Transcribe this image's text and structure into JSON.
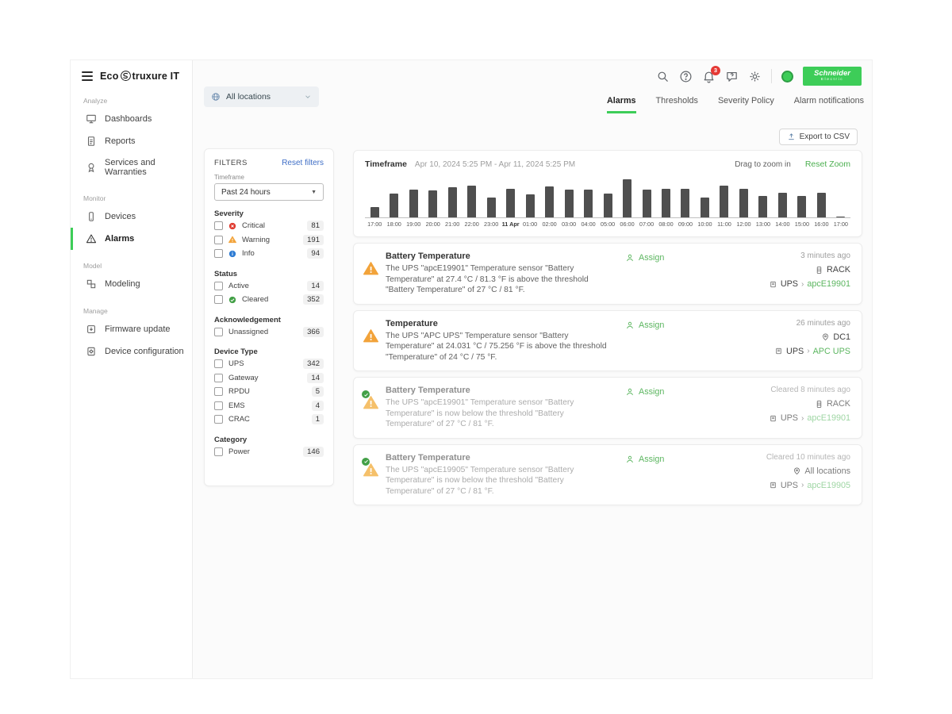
{
  "brand": {
    "eco": "Eco",
    "rest": "truxure IT"
  },
  "header": {
    "notifications_badge": "3",
    "se_line1": "Schneider",
    "se_line2": "Electric"
  },
  "sidebar": {
    "sections": [
      {
        "label": "Analyze",
        "items": [
          {
            "label": "Dashboards"
          },
          {
            "label": "Reports"
          },
          {
            "label": "Services and Warranties"
          }
        ]
      },
      {
        "label": "Monitor",
        "items": [
          {
            "label": "Devices"
          },
          {
            "label": "Alarms"
          }
        ]
      },
      {
        "label": "Model",
        "items": [
          {
            "label": "Modeling"
          }
        ]
      },
      {
        "label": "Manage",
        "items": [
          {
            "label": "Firmware update"
          },
          {
            "label": "Device configuration"
          }
        ]
      }
    ]
  },
  "toolbar": {
    "location_selector": "All locations",
    "export_label": "Export to CSV"
  },
  "tabs": [
    {
      "label": "Alarms"
    },
    {
      "label": "Thresholds"
    },
    {
      "label": "Severity Policy"
    },
    {
      "label": "Alarm notifications"
    }
  ],
  "filters": {
    "title": "FILTERS",
    "reset_label": "Reset filters",
    "timeframe_label": "Timeframe",
    "timeframe_value": "Past 24 hours",
    "severity_label": "Severity",
    "severity": [
      {
        "label": "Critical",
        "count": "81"
      },
      {
        "label": "Warning",
        "count": "191"
      },
      {
        "label": "Info",
        "count": "94"
      }
    ],
    "status_label": "Status",
    "status": [
      {
        "label": "Active",
        "count": "14"
      },
      {
        "label": "Cleared",
        "count": "352"
      }
    ],
    "ack_label": "Acknowledgement",
    "ack": [
      {
        "label": "Unassigned",
        "count": "366"
      }
    ],
    "device_type_label": "Device Type",
    "device_type": [
      {
        "label": "UPS",
        "count": "342"
      },
      {
        "label": "Gateway",
        "count": "14"
      },
      {
        "label": "RPDU",
        "count": "5"
      },
      {
        "label": "EMS",
        "count": "4"
      },
      {
        "label": "CRAC",
        "count": "1"
      }
    ],
    "category_label": "Category",
    "category": [
      {
        "label": "Power",
        "count": "146"
      }
    ]
  },
  "timeline": {
    "title": "Timeframe",
    "range": "Apr 10, 2024 5:25 PM  -  Apr 11, 2024 5:25 PM",
    "drag_hint": "Drag to zoom in",
    "reset_zoom": "Reset Zoom"
  },
  "chart_data": {
    "type": "bar",
    "categories": [
      "17:00",
      "18:00",
      "19:00",
      "20:00",
      "21:00",
      "22:00",
      "23:00",
      "11 Apr",
      "01:00",
      "02:00",
      "03:00",
      "04:00",
      "05:00",
      "06:00",
      "07:00",
      "08:00",
      "09:00",
      "10:00",
      "11:00",
      "12:00",
      "13:00",
      "14:00",
      "15:00",
      "16:00",
      "17:00"
    ],
    "values": [
      10,
      23,
      27,
      26,
      29,
      31,
      19,
      28,
      22,
      30,
      27,
      27,
      23,
      37,
      27,
      28,
      28,
      19,
      31,
      28,
      21,
      24,
      21,
      24,
      1
    ],
    "title": "",
    "xlabel": "",
    "ylabel": "",
    "legend": false,
    "grid": false,
    "bar_color": "#4f4f4f"
  },
  "alarms": [
    {
      "title": "Battery Temperature",
      "description": "The UPS \"apcE19901\" Temperature sensor \"Battery Temperature\" at 27.4 °C / 81.3 °F is above the threshold \"Battery Temperature\" of 27 °C / 81 °F.",
      "assign_label": "Assign",
      "time": "3 minutes ago",
      "location": "RACK",
      "device_type": "UPS",
      "device_name": "apcE19901",
      "chevron": "›",
      "status": "active"
    },
    {
      "title": "Temperature",
      "description": "The UPS \"APC UPS\" Temperature sensor \"Battery Temperature\" at 24.031 °C / 75.256 °F is above the threshold \"Temperature\" of 24 °C / 75 °F.",
      "assign_label": "Assign",
      "time": "26 minutes ago",
      "location": "DC1",
      "device_type": "UPS",
      "device_name": "APC UPS",
      "chevron": "›",
      "status": "active"
    },
    {
      "title": "Battery Temperature",
      "description": "The UPS \"apcE19901\" Temperature sensor \"Battery Temperature\" is now below the threshold \"Battery Temperature\" of 27 °C / 81 °F.",
      "assign_label": "Assign",
      "time": "Cleared 8 minutes ago",
      "location": "RACK",
      "device_type": "UPS",
      "device_name": "apcE19901",
      "chevron": "›",
      "status": "cleared"
    },
    {
      "title": "Battery Temperature",
      "description": "The UPS \"apcE19905\" Temperature sensor \"Battery Temperature\" is now below the threshold \"Battery Temperature\" of 27 °C / 81 °F.",
      "assign_label": "Assign",
      "time": "Cleared 10 minutes ago",
      "location": "All locations",
      "device_type": "UPS",
      "device_name": "apcE19905",
      "chevron": "›",
      "status": "cleared"
    }
  ],
  "colors": {
    "accent_green": "#3dcd58",
    "link_green": "#5cb660",
    "link_blue": "#3f6ec6",
    "warning_orange": "#f2a33a",
    "critical_red": "#e03c31",
    "info_blue": "#2f7cd3",
    "cleared_green": "#43a047",
    "badge_red": "#e53935",
    "bar_gray": "#4f4f4f"
  }
}
